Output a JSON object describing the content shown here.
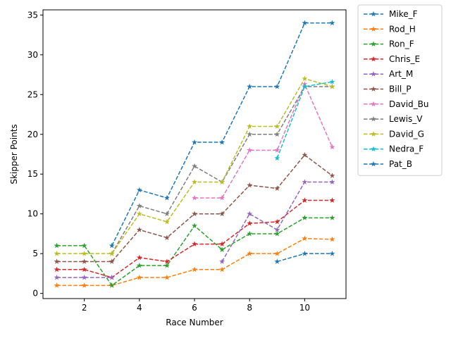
{
  "chart_data": {
    "type": "line",
    "x_label": "Race Number",
    "y_label": "Skipper Points",
    "x": [
      1,
      2,
      3,
      4,
      5,
      6,
      7,
      8,
      9,
      10,
      11
    ],
    "xlim": [
      0.5,
      11.5
    ],
    "xticks": [
      2,
      4,
      6,
      8,
      10
    ],
    "ylim": [
      -0.65,
      35.65
    ],
    "yticks": [
      0,
      5,
      10,
      15,
      20,
      25,
      30,
      35
    ],
    "grid": false,
    "legend": "outside right",
    "line_style": "dashed",
    "marker": "star",
    "series": [
      {
        "name": "Mike_F",
        "color": "#1f77b4",
        "values": [
          null,
          null,
          6,
          13,
          12,
          19,
          19,
          26,
          26,
          34,
          34
        ]
      },
      {
        "name": "Rod_H",
        "color": "#ff7f0e",
        "values": [
          1,
          1,
          1,
          2,
          2,
          3,
          3,
          5,
          5,
          6.9,
          6.8
        ]
      },
      {
        "name": "Ron_F",
        "color": "#2ca02c",
        "values": [
          6,
          6,
          1,
          3.5,
          3.5,
          8.5,
          5.5,
          7.5,
          7.5,
          9.5,
          9.5
        ]
      },
      {
        "name": "Chris_E",
        "color": "#d62728",
        "values": [
          3,
          3,
          2,
          4.5,
          4,
          6.2,
          6.2,
          8.8,
          9,
          11.7,
          11.7
        ]
      },
      {
        "name": "Art_M",
        "color": "#9467bd",
        "values": [
          2,
          2,
          2,
          null,
          null,
          null,
          4,
          10,
          8,
          14,
          14
        ]
      },
      {
        "name": "Bill_P",
        "color": "#8c564b",
        "values": [
          4,
          4,
          4,
          8,
          7,
          10,
          10,
          13.6,
          13.2,
          17.4,
          14.8
        ]
      },
      {
        "name": "David_Bu",
        "color": "#e377c2",
        "values": [
          null,
          null,
          null,
          null,
          null,
          12,
          12,
          18,
          18,
          26.3,
          18.4
        ]
      },
      {
        "name": "Lewis_V",
        "color": "#7f7f7f",
        "values": [
          null,
          null,
          5,
          11,
          10,
          16,
          14,
          20,
          20,
          26,
          26
        ]
      },
      {
        "name": "David_G",
        "color": "#bcbd22",
        "values": [
          5,
          5,
          5,
          10,
          9,
          14,
          14,
          21,
          21,
          27,
          26
        ]
      },
      {
        "name": "Nedra_F",
        "color": "#17becf",
        "values": [
          null,
          null,
          null,
          null,
          null,
          null,
          null,
          null,
          17,
          26,
          26.6
        ]
      },
      {
        "name": "Pat_B",
        "color": "#1f77b4",
        "values": [
          null,
          null,
          null,
          null,
          null,
          null,
          null,
          null,
          4,
          5,
          5
        ]
      }
    ]
  }
}
